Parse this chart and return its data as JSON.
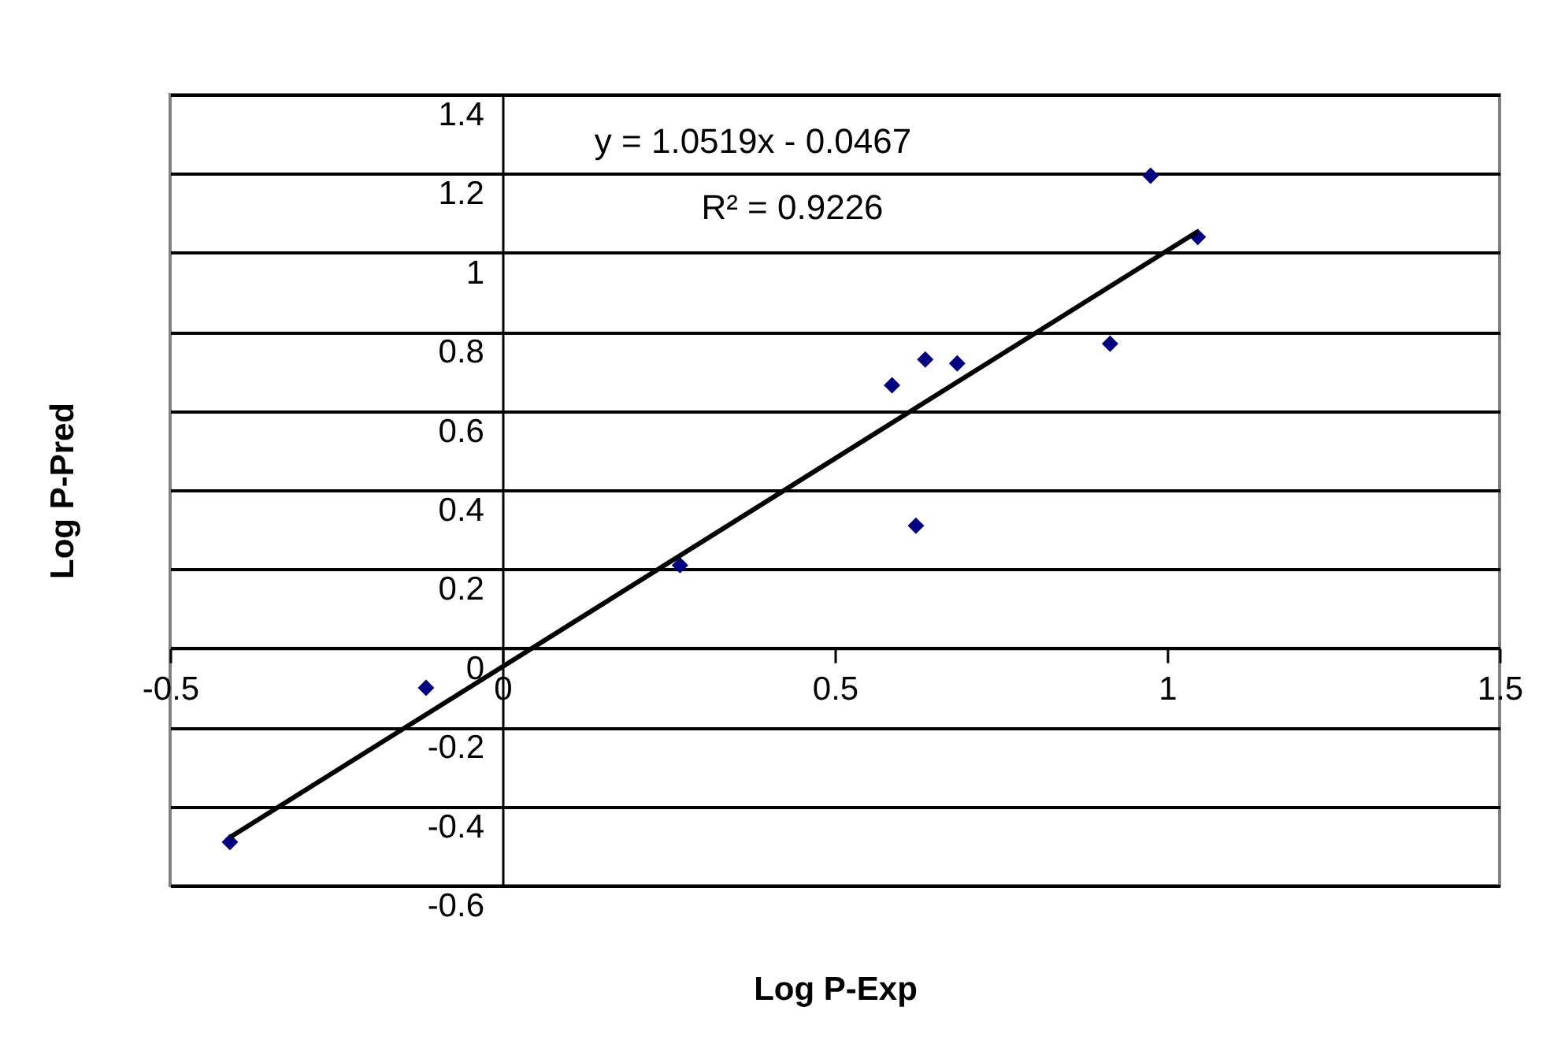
{
  "chart_data": {
    "type": "scatter",
    "xlabel": "Log P-Exp",
    "ylabel": "Log P-Pred",
    "annotations": [
      "y = 1.0519x - 0.0467",
      "R² = 0.9226"
    ],
    "series": [
      {
        "color": "#000080",
        "marker": "diamond",
        "x": [
          -0.41,
          -0.115,
          0.267,
          0.586,
          0.636,
          0.684,
          0.622,
          0.914,
          0.975,
          1.046
        ],
        "values": [
          -0.49,
          -0.1,
          0.21,
          0.665,
          0.73,
          0.72,
          0.31,
          0.77,
          1.195,
          1.04
        ]
      },
      {
        "type": "line",
        "color": "#000000",
        "marker": "none",
        "x": [
          -0.41,
          1.046
        ],
        "values": [
          -0.478,
          1.054
        ]
      }
    ],
    "xlim": [
      -0.5,
      1.5
    ],
    "xticks": [
      -0.5,
      0,
      0.5,
      1,
      1.5
    ],
    "ylim": [
      -0.6,
      1.4
    ],
    "yticks": [
      -0.6,
      -0.4,
      -0.2,
      0,
      0.2,
      0.4,
      0.6,
      0.8,
      1,
      1.2,
      1.4
    ],
    "grid": "y",
    "legend": false
  }
}
